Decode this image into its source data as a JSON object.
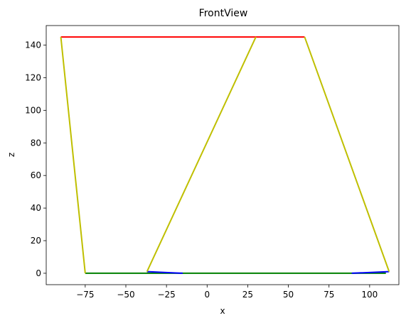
{
  "chart_data": {
    "type": "line",
    "title": "FrontView",
    "xlabel": "x",
    "ylabel": "z",
    "xlim": [
      -99,
      118
    ],
    "ylim": [
      -7,
      152
    ],
    "xticks": [
      -75,
      -50,
      -25,
      0,
      25,
      50,
      75,
      100
    ],
    "yticks": [
      0,
      20,
      40,
      60,
      80,
      100,
      120,
      140
    ],
    "xtick_labels": [
      "−75",
      "−50",
      "−25",
      "0",
      "25",
      "50",
      "75",
      "100"
    ],
    "ytick_labels": [
      "0",
      "20",
      "40",
      "60",
      "80",
      "100",
      "120",
      "140"
    ],
    "grid": false,
    "series": [
      {
        "color": "#ff0000",
        "x": [
          -90,
          60
        ],
        "y": [
          145,
          145
        ]
      },
      {
        "color": "#008000",
        "x": [
          -75,
          110
        ],
        "y": [
          0,
          0
        ]
      },
      {
        "color": "#0000ff",
        "x": [
          -37,
          -15
        ],
        "y": [
          1,
          0
        ]
      },
      {
        "color": "#0000ff",
        "x": [
          89,
          112
        ],
        "y": [
          0,
          1
        ]
      },
      {
        "color": "#bfbf00",
        "x": [
          -90,
          -75
        ],
        "y": [
          145,
          0
        ]
      },
      {
        "color": "#bfbf00",
        "x": [
          -37,
          30
        ],
        "y": [
          1,
          145
        ]
      },
      {
        "color": "#bfbf00",
        "x": [
          60,
          112
        ],
        "y": [
          145,
          1
        ]
      }
    ]
  }
}
